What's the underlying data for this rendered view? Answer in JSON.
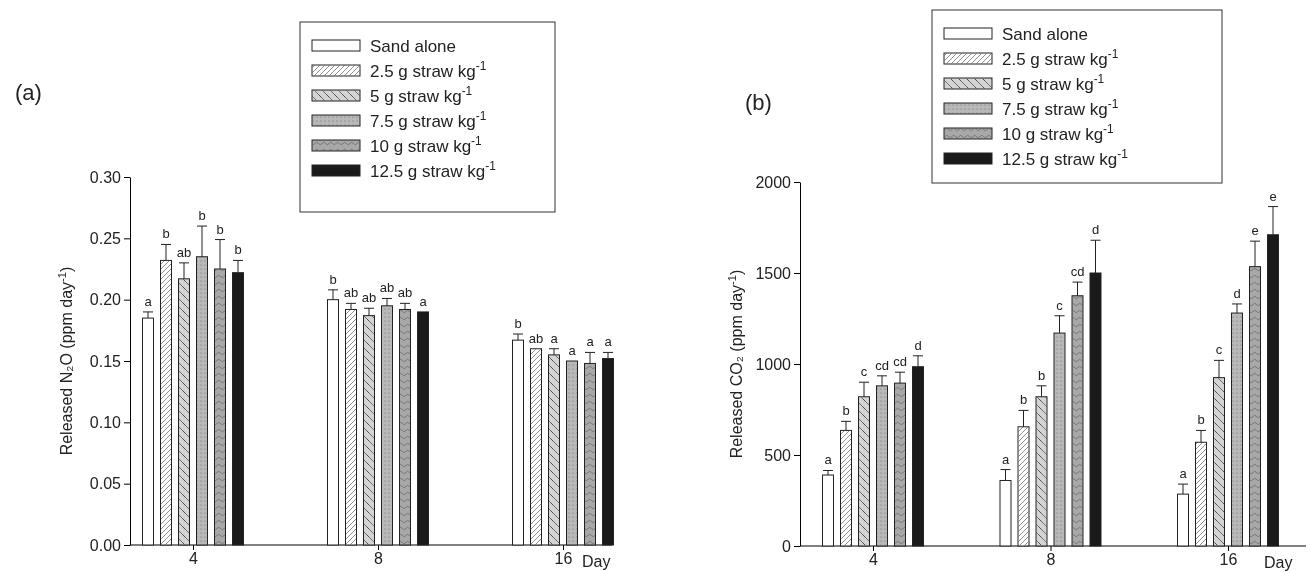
{
  "chart_data": [
    {
      "type": "bar",
      "title": "(a)",
      "xlabel": "Day",
      "ylabel": "Released N₂O (ppm day$^{-1}$)",
      "categories": [
        "4",
        "8",
        "16"
      ],
      "ylim": [
        0,
        0.3
      ],
      "yticks": [
        {
          "value": 0,
          "label": "0.00"
        },
        {
          "value": 0.05,
          "label": "0.05"
        },
        {
          "value": 0.1,
          "label": "0.10"
        },
        {
          "value": 0.15,
          "label": "0.15"
        },
        {
          "value": 0.2,
          "label": "0.20"
        },
        {
          "value": 0.25,
          "label": "0.25"
        },
        {
          "value": 0.3,
          "label": "0.30"
        }
      ],
      "legend": "top right",
      "grid": false,
      "series": [
        {
          "name": "Sand alone",
          "color": "#ffffff",
          "values": [
            0.185,
            0.2,
            0.167
          ],
          "errors": [
            [
              0.185,
              0.19
            ],
            [
              0.2,
              0.208
            ],
            [
              0.167,
              0.172
            ]
          ],
          "value_labels": [
            "a",
            "b",
            "b"
          ]
        },
        {
          "name": "2.5 g straw kg$^{-1}$",
          "color": "#ffffff",
          "values": [
            0.232,
            0.192,
            0.16
          ],
          "errors": [
            [
              0.232,
              0.245
            ],
            [
              0.192,
              0.197
            ],
            null
          ],
          "value_labels": [
            "b",
            "ab",
            "ab"
          ]
        },
        {
          "name": "5 g straw kg$^{-1}$",
          "color": "#d4d4d4",
          "values": [
            0.217,
            0.187,
            0.155
          ],
          "errors": [
            [
              0.217,
              0.23
            ],
            [
              0.187,
              0.193
            ],
            [
              0.155,
              0.16
            ]
          ],
          "value_labels": [
            "ab",
            "ab",
            "a"
          ]
        },
        {
          "name": "7.5 g straw kg$^{-1}$",
          "color": "#b8b8b8",
          "values": [
            0.235,
            0.195,
            0.15
          ],
          "errors": [
            [
              0.235,
              0.26
            ],
            [
              0.195,
              0.201
            ],
            null
          ],
          "value_labels": [
            "b",
            "ab",
            "a"
          ]
        },
        {
          "name": "10 g straw kg$^{-1}$",
          "color": "#a8a8a8",
          "values": [
            0.225,
            0.192,
            0.148
          ],
          "errors": [
            [
              0.225,
              0.249
            ],
            [
              0.192,
              0.197
            ],
            [
              0.148,
              0.157
            ]
          ],
          "value_labels": [
            "b",
            "ab",
            "a"
          ]
        },
        {
          "name": "12.5 g straw kg$^{-1}$",
          "color": "#1a1a1a",
          "values": [
            0.222,
            0.19,
            0.152
          ],
          "errors": [
            [
              0.222,
              0.232
            ],
            null,
            [
              0.152,
              0.157
            ]
          ],
          "value_labels": [
            "b",
            "a",
            "a"
          ]
        }
      ]
    },
    {
      "type": "bar",
      "title": "(b)",
      "xlabel": "Day",
      "ylabel": "Released CO₂ (ppm day$^{-1}$)",
      "categories": [
        "4",
        "8",
        "16"
      ],
      "ylim": [
        0,
        2000
      ],
      "yticks": [
        0,
        500,
        1000,
        1500,
        2000
      ],
      "legend": "top left",
      "grid": false,
      "series": [
        {
          "name": "Sand alone",
          "color": "#ffffff",
          "values": [
            390,
            360,
            285
          ],
          "errors": [
            [
              390,
              415
            ],
            [
              360,
              420
            ],
            [
              285,
              340
            ]
          ],
          "value_labels": [
            "a",
            "a",
            "a"
          ]
        },
        {
          "name": "2.5 g straw kg$^{-1}$",
          "color": "#ffffff",
          "values": [
            635,
            655,
            570
          ],
          "errors": [
            [
              635,
              685
            ],
            [
              655,
              745
            ],
            [
              570,
              635
            ]
          ],
          "value_labels": [
            "b",
            "b",
            "b"
          ]
        },
        {
          "name": "5 g straw kg$^{-1}$",
          "color": "#d4d4d4",
          "values": [
            820,
            820,
            925
          ],
          "errors": [
            [
              820,
              900
            ],
            [
              820,
              880
            ],
            [
              925,
              1020
            ]
          ],
          "value_labels": [
            "c",
            "b",
            "c"
          ]
        },
        {
          "name": "7.5 g straw kg$^{-1}$",
          "color": "#b8b8b8",
          "values": [
            880,
            1170,
            1280
          ],
          "errors": [
            [
              880,
              935
            ],
            [
              1170,
              1265
            ],
            [
              1280,
              1330
            ]
          ],
          "value_labels": [
            "cd",
            "c",
            "d"
          ]
        },
        {
          "name": "10 g straw kg$^{-1}$",
          "color": "#a8a8a8",
          "values": [
            895,
            1375,
            1535
          ],
          "errors": [
            [
              895,
              955
            ],
            [
              1375,
              1450
            ],
            [
              1535,
              1675
            ]
          ],
          "value_labels": [
            "cd",
            "cd",
            "e"
          ]
        },
        {
          "name": "12.5 g straw kg$^{-1}$",
          "color": "#1a1a1a",
          "values": [
            985,
            1500,
            1710
          ],
          "errors": [
            [
              985,
              1045
            ],
            [
              1500,
              1680
            ],
            [
              1710,
              1865
            ]
          ],
          "value_labels": [
            "d",
            "d",
            "e"
          ]
        }
      ]
    }
  ]
}
